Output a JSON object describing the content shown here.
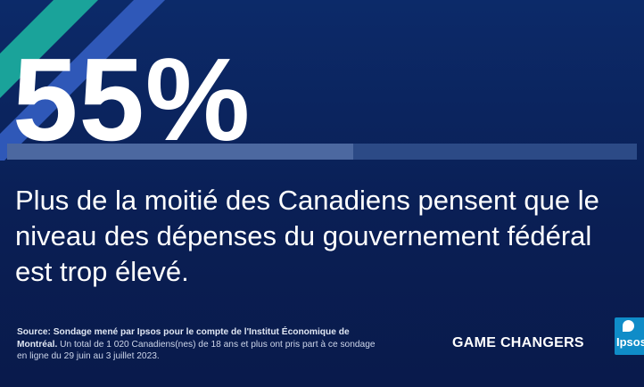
{
  "stat": {
    "value": "55%",
    "progress_fraction": 0.55
  },
  "headline": "Plus de la moitié des Canadiens pensent que le niveau des dépenses du gouvernement fédéral est trop élevé.",
  "source": {
    "bold": "Source: Sondage mené par Ipsos pour le compte de l'Institut  Économique de Montréal.",
    "text": " Un total de 1 020 Canadiens(nes) de 18 ans et plus ont pris part à ce sondage en ligne du 29 juin au 3 juillet 2023."
  },
  "tagline": "GAME CHANGERS",
  "logo": {
    "text": "Ipsos",
    "icon": "ipsos-logo-icon"
  },
  "colors": {
    "background": "#0c2a69",
    "stripe_teal": "#1aa39a",
    "stripe_blue": "#2f58b8",
    "progress_track": "#2c4a86",
    "progress_fill": "#4c68a0",
    "logo_blue": "#0f8cc8"
  }
}
